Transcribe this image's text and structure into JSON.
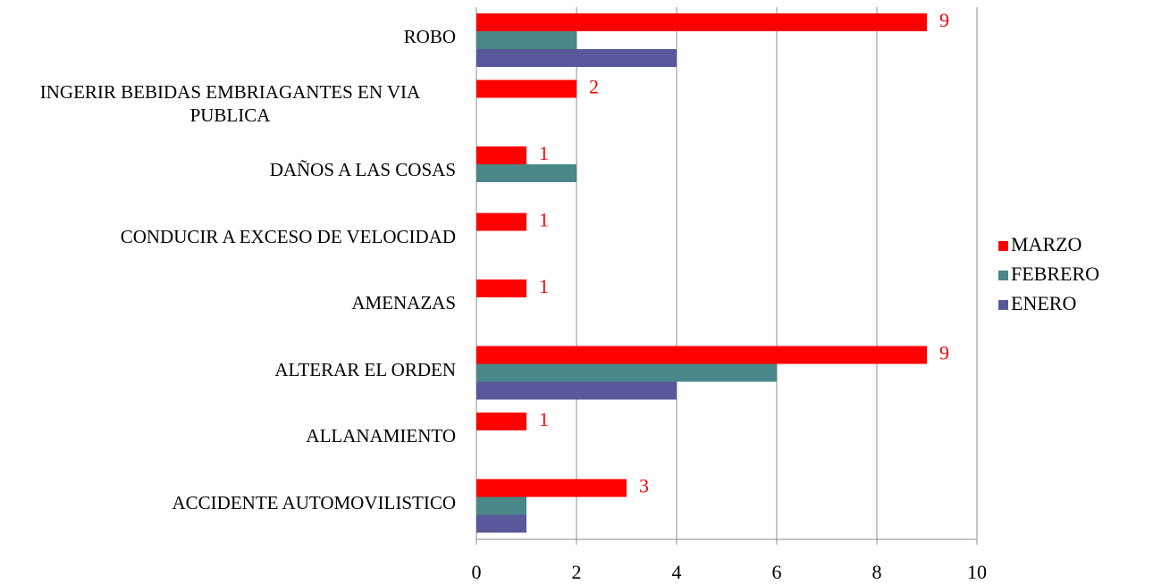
{
  "chart_data": {
    "type": "hbar",
    "categories": [
      "ROBO",
      "INGERIR BEBIDAS EMBRIAGANTES EN VIA PUBLICA",
      "DAÑOS A LAS COSAS",
      "CONDUCIR A EXCESO DE VELOCIDAD",
      "AMENAZAS",
      "ALTERAR EL ORDEN",
      "ALLANAMIENTO",
      "ACCIDENTE AUTOMOVILISTICO"
    ],
    "series": [
      {
        "name": "MARZO",
        "color": "#ff0000",
        "values": [
          9,
          2,
          1,
          1,
          1,
          9,
          1,
          3
        ],
        "data_labels": true
      },
      {
        "name": "FEBRERO",
        "color": "#4a8788",
        "values": [
          2,
          null,
          2,
          null,
          null,
          6,
          null,
          1
        ]
      },
      {
        "name": "ENERO",
        "color": "#58589a",
        "values": [
          4,
          null,
          null,
          null,
          null,
          4,
          null,
          1
        ]
      }
    ],
    "xlim": [
      0,
      10
    ],
    "xticks": [
      0,
      2,
      4,
      6,
      8,
      10
    ],
    "grid": true,
    "legend": "right"
  }
}
